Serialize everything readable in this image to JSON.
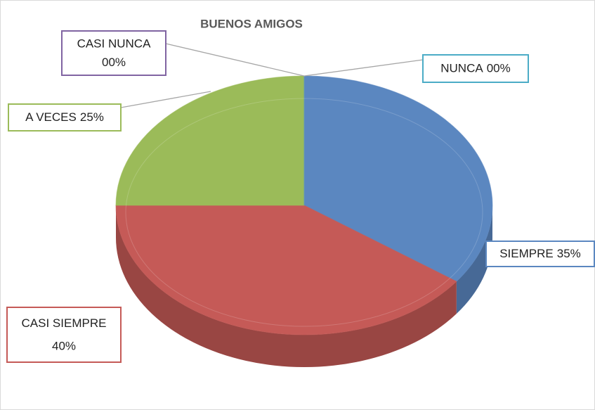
{
  "chart_data": {
    "type": "pie",
    "title": "BUENOS AMIGOS",
    "categories": [
      "SIEMPRE",
      "CASI SIEMPRE",
      "A VECES",
      "CASI NUNCA",
      "NUNCA"
    ],
    "values": [
      35,
      40,
      25,
      0,
      0
    ],
    "value_labels": [
      "35%",
      "40%",
      "25%",
      "00%",
      "00%"
    ],
    "colors": [
      "#5b87c0",
      "#c55a57",
      "#9bbb59",
      "#8064a2",
      "#4bacc6"
    ]
  }
}
